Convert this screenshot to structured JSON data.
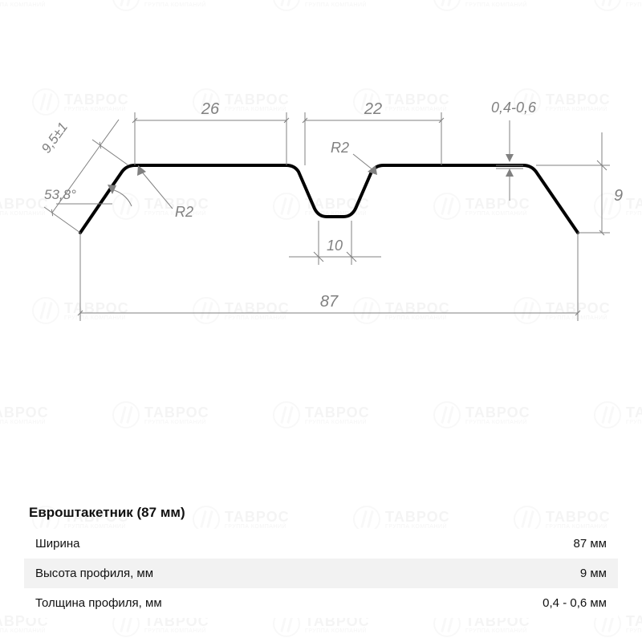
{
  "watermark": {
    "brand": "ТАВРОС",
    "subtitle": "ГРУППА КОМПАНИЙ"
  },
  "diagram": {
    "profile_color": "#000000",
    "profile_stroke_width": 4,
    "dim_color": "#808080",
    "dim_stroke_width": 1,
    "dim_fontsize": 18,
    "labels": {
      "top_left_flat": "26",
      "top_right_flat": "22",
      "thickness": "0,4-0,6",
      "slant_len": "9,5±1",
      "angle": "53,8°",
      "radius": "R2",
      "radius2": "R2",
      "valley_width": "10",
      "overall_width": "87",
      "height": "9"
    }
  },
  "spec": {
    "title": "Евроштакетник (87 мм)",
    "rows": [
      {
        "label": "Ширина",
        "value": "87 мм"
      },
      {
        "label": "Высота профиля, мм",
        "value": "9 мм"
      },
      {
        "label": "Толщина профиля, мм",
        "value": "0,4 - 0,6 мм"
      }
    ]
  }
}
